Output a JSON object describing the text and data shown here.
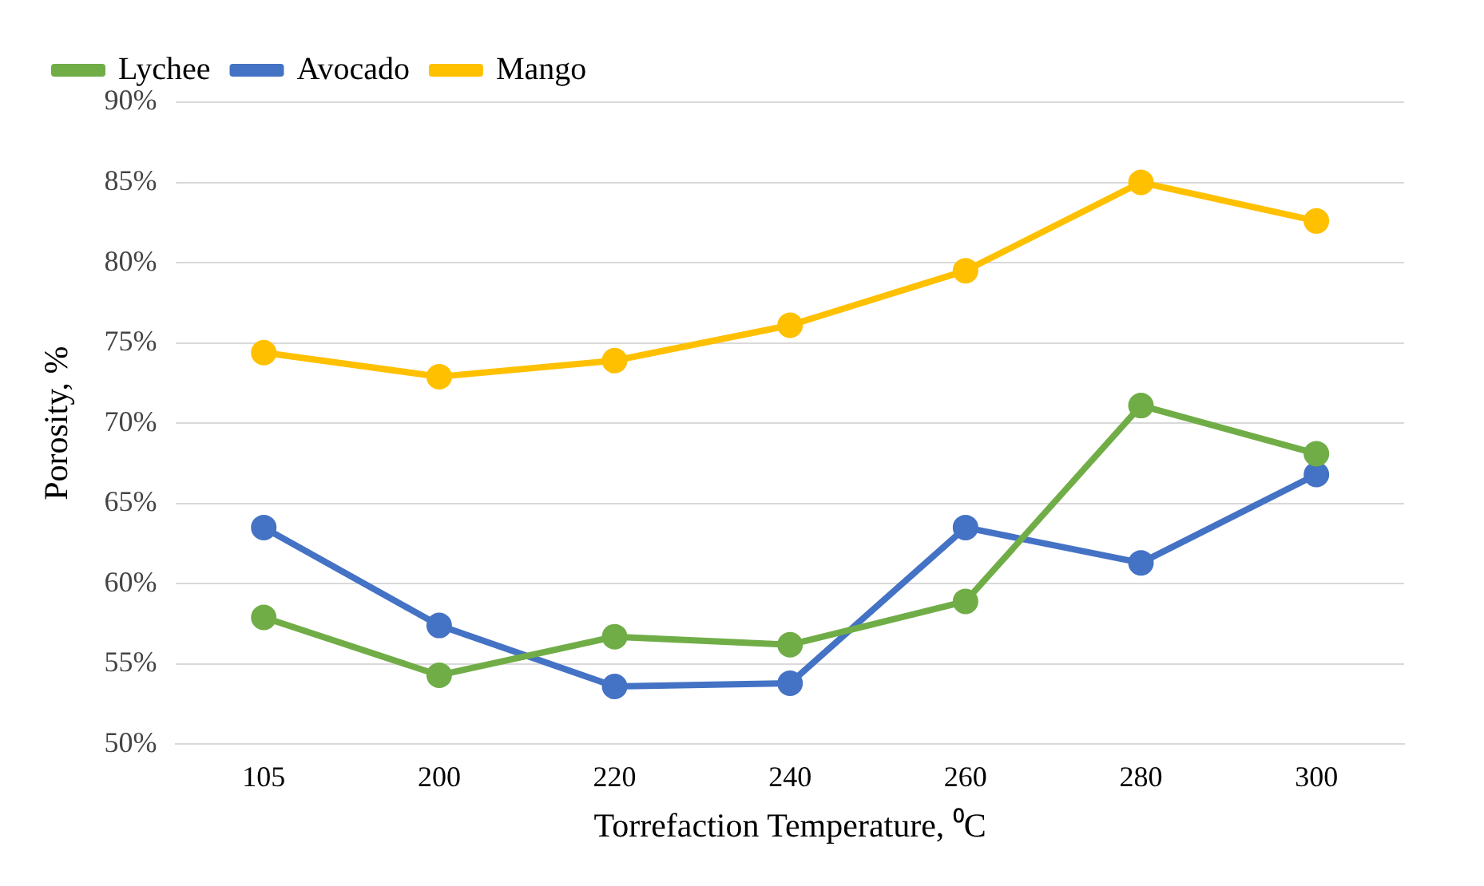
{
  "chart_data": {
    "type": "line",
    "xlabel": "Torrefaction Temperature, ⁰C",
    "ylabel": "Porosity, %",
    "categories": [
      "105",
      "200",
      "220",
      "240",
      "260",
      "280",
      "300"
    ],
    "series": [
      {
        "name": "Lychee",
        "color": "#70ad47",
        "values": [
          57.9,
          54.3,
          56.7,
          56.2,
          58.9,
          71.1,
          68.1
        ]
      },
      {
        "name": "Avocado",
        "color": "#4472c4",
        "values": [
          63.5,
          57.4,
          53.6,
          53.8,
          63.5,
          61.3,
          66.8
        ]
      },
      {
        "name": "Mango",
        "color": "#ffc000",
        "values": [
          74.4,
          72.9,
          73.9,
          76.1,
          79.5,
          85.0,
          82.6
        ]
      }
    ],
    "ylim": [
      50,
      90
    ],
    "yticks": [
      {
        "value": 50,
        "label": "50%"
      },
      {
        "value": 55,
        "label": "55%"
      },
      {
        "value": 60,
        "label": "60%"
      },
      {
        "value": 65,
        "label": "65%"
      },
      {
        "value": 70,
        "label": "70%"
      },
      {
        "value": 75,
        "label": "75%"
      },
      {
        "value": 80,
        "label": "80%"
      },
      {
        "value": 85,
        "label": "85%"
      },
      {
        "value": 90,
        "label": "90%"
      }
    ],
    "grid": "y",
    "legend": "top left",
    "marker": "circle",
    "line_style": "solid"
  }
}
